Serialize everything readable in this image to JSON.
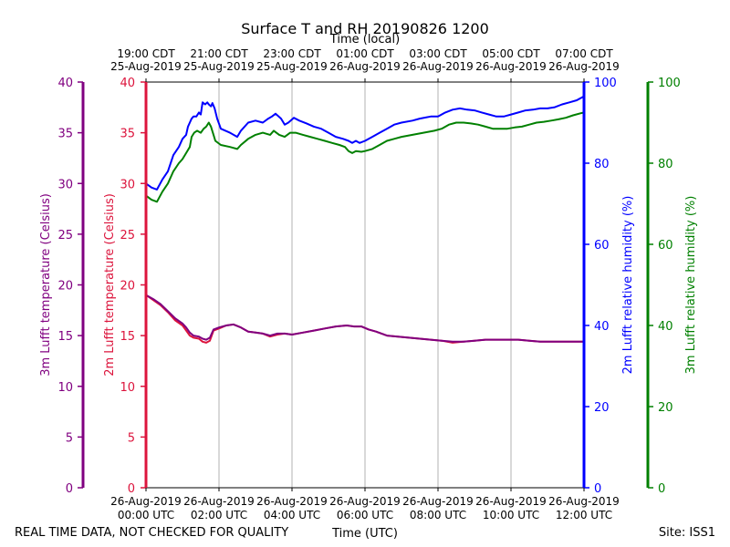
{
  "chart_data": {
    "type": "line",
    "title": "Surface T and RH 20190826 1200",
    "top_axis_title": "Time (local)",
    "bottom_axis_title": "Time (UTC)",
    "footer_left": "REAL TIME DATA, NOT CHECKED FOR QUALITY",
    "footer_right": "Site: ISS1",
    "x_range_hours": [
      0,
      12
    ],
    "top_ticks": [
      {
        "h": 0,
        "l1": "19:00 CDT",
        "l2": "25-Aug-2019"
      },
      {
        "h": 2,
        "l1": "21:00 CDT",
        "l2": "25-Aug-2019"
      },
      {
        "h": 4,
        "l1": "23:00 CDT",
        "l2": "25-Aug-2019"
      },
      {
        "h": 6,
        "l1": "01:00 CDT",
        "l2": "26-Aug-2019"
      },
      {
        "h": 8,
        "l1": "03:00 CDT",
        "l2": "26-Aug-2019"
      },
      {
        "h": 10,
        "l1": "05:00 CDT",
        "l2": "26-Aug-2019"
      },
      {
        "h": 12,
        "l1": "07:00 CDT",
        "l2": "26-Aug-2019"
      }
    ],
    "bottom_ticks": [
      {
        "h": 0,
        "l1": "26-Aug-2019",
        "l2": "00:00 UTC"
      },
      {
        "h": 2,
        "l1": "26-Aug-2019",
        "l2": "02:00 UTC"
      },
      {
        "h": 4,
        "l1": "26-Aug-2019",
        "l2": "04:00 UTC"
      },
      {
        "h": 6,
        "l1": "26-Aug-2019",
        "l2": "06:00 UTC"
      },
      {
        "h": 8,
        "l1": "26-Aug-2019",
        "l2": "08:00 UTC"
      },
      {
        "h": 10,
        "l1": "26-Aug-2019",
        "l2": "10:00 UTC"
      },
      {
        "h": 12,
        "l1": "26-Aug-2019",
        "l2": "12:00 UTC"
      }
    ],
    "axes": {
      "temp3m": {
        "label": "3m Lufft temperature (Celsius)",
        "color": "#800080",
        "min": 0,
        "max": 40,
        "ticks": [
          0,
          5,
          10,
          15,
          20,
          25,
          30,
          35,
          40
        ]
      },
      "temp2m": {
        "label": "2m Lufft temperature (Celsius)",
        "color": "#dc143c",
        "min": 0,
        "max": 40,
        "ticks": [
          0,
          5,
          10,
          15,
          20,
          25,
          30,
          35,
          40
        ]
      },
      "rh2m": {
        "label": "2m Lufft relative humidity (%)",
        "color": "#0000ff",
        "min": 0,
        "max": 100,
        "ticks": [
          0,
          20,
          40,
          60,
          80,
          100
        ]
      },
      "rh3m": {
        "label": "3m Lufft relative humidity (%)",
        "color": "#008000",
        "min": 0,
        "max": 100,
        "ticks": [
          0,
          20,
          40,
          60,
          80,
          100
        ]
      }
    },
    "series": [
      {
        "name": "2m Lufft relative humidity",
        "axis": "rh2m",
        "color": "#0000ff",
        "points": [
          [
            0,
            75
          ],
          [
            0.15,
            74
          ],
          [
            0.3,
            73.5
          ],
          [
            0.45,
            76
          ],
          [
            0.6,
            78
          ],
          [
            0.75,
            82
          ],
          [
            0.9,
            84
          ],
          [
            1.0,
            86
          ],
          [
            1.1,
            87
          ],
          [
            1.15,
            89
          ],
          [
            1.2,
            90
          ],
          [
            1.25,
            91
          ],
          [
            1.3,
            91.5
          ],
          [
            1.38,
            91.5
          ],
          [
            1.45,
            92.5
          ],
          [
            1.5,
            92
          ],
          [
            1.55,
            95
          ],
          [
            1.62,
            94.5
          ],
          [
            1.68,
            95
          ],
          [
            1.72,
            94.5
          ],
          [
            1.78,
            94
          ],
          [
            1.82,
            94.8
          ],
          [
            1.88,
            93.5
          ],
          [
            1.95,
            91
          ],
          [
            2.05,
            88.5
          ],
          [
            2.3,
            87.5
          ],
          [
            2.5,
            86.5
          ],
          [
            2.6,
            88
          ],
          [
            2.8,
            90
          ],
          [
            3.0,
            90.5
          ],
          [
            3.2,
            90
          ],
          [
            3.35,
            91
          ],
          [
            3.45,
            91.5
          ],
          [
            3.55,
            92.2
          ],
          [
            3.7,
            91
          ],
          [
            3.8,
            89.5
          ],
          [
            3.9,
            90
          ],
          [
            4.05,
            91.2
          ],
          [
            4.2,
            90.5
          ],
          [
            4.4,
            89.8
          ],
          [
            4.6,
            89
          ],
          [
            4.8,
            88.5
          ],
          [
            5.0,
            87.5
          ],
          [
            5.2,
            86.5
          ],
          [
            5.4,
            86
          ],
          [
            5.55,
            85.5
          ],
          [
            5.65,
            85
          ],
          [
            5.75,
            85.5
          ],
          [
            5.85,
            85
          ],
          [
            6.0,
            85.5
          ],
          [
            6.2,
            86.5
          ],
          [
            6.4,
            87.5
          ],
          [
            6.6,
            88.5
          ],
          [
            6.8,
            89.5
          ],
          [
            7.0,
            90
          ],
          [
            7.3,
            90.5
          ],
          [
            7.5,
            91
          ],
          [
            7.8,
            91.5
          ],
          [
            8.0,
            91.5
          ],
          [
            8.2,
            92.5
          ],
          [
            8.4,
            93.2
          ],
          [
            8.6,
            93.5
          ],
          [
            8.8,
            93.2
          ],
          [
            9.0,
            93
          ],
          [
            9.2,
            92.5
          ],
          [
            9.4,
            92
          ],
          [
            9.6,
            91.5
          ],
          [
            9.8,
            91.5
          ],
          [
            10.0,
            92
          ],
          [
            10.2,
            92.5
          ],
          [
            10.4,
            93
          ],
          [
            10.6,
            93.2
          ],
          [
            10.8,
            93.5
          ],
          [
            11.0,
            93.5
          ],
          [
            11.2,
            93.8
          ],
          [
            11.4,
            94.5
          ],
          [
            11.6,
            95
          ],
          [
            11.8,
            95.5
          ],
          [
            12.0,
            96.5
          ]
        ]
      },
      {
        "name": "3m Lufft relative humidity",
        "axis": "rh3m",
        "color": "#008000",
        "points": [
          [
            0,
            72
          ],
          [
            0.15,
            71
          ],
          [
            0.3,
            70.5
          ],
          [
            0.45,
            73
          ],
          [
            0.6,
            75
          ],
          [
            0.75,
            78
          ],
          [
            0.9,
            80
          ],
          [
            1.0,
            81
          ],
          [
            1.1,
            82.5
          ],
          [
            1.2,
            84
          ],
          [
            1.25,
            86.5
          ],
          [
            1.32,
            87.5
          ],
          [
            1.4,
            88
          ],
          [
            1.5,
            87.5
          ],
          [
            1.58,
            88.5
          ],
          [
            1.65,
            89
          ],
          [
            1.72,
            90
          ],
          [
            1.78,
            89
          ],
          [
            1.85,
            87
          ],
          [
            1.9,
            85.5
          ],
          [
            2.05,
            84.5
          ],
          [
            2.3,
            84
          ],
          [
            2.5,
            83.5
          ],
          [
            2.6,
            84.5
          ],
          [
            2.8,
            86
          ],
          [
            3.0,
            87
          ],
          [
            3.2,
            87.5
          ],
          [
            3.4,
            87
          ],
          [
            3.5,
            88
          ],
          [
            3.65,
            87
          ],
          [
            3.8,
            86.5
          ],
          [
            3.95,
            87.5
          ],
          [
            4.1,
            87.5
          ],
          [
            4.3,
            87
          ],
          [
            4.5,
            86.5
          ],
          [
            4.7,
            86
          ],
          [
            4.9,
            85.5
          ],
          [
            5.1,
            85
          ],
          [
            5.3,
            84.5
          ],
          [
            5.45,
            84
          ],
          [
            5.55,
            83
          ],
          [
            5.65,
            82.5
          ],
          [
            5.75,
            83
          ],
          [
            5.9,
            82.8
          ],
          [
            6.0,
            83
          ],
          [
            6.2,
            83.5
          ],
          [
            6.4,
            84.5
          ],
          [
            6.6,
            85.5
          ],
          [
            6.8,
            86
          ],
          [
            7.0,
            86.5
          ],
          [
            7.3,
            87
          ],
          [
            7.6,
            87.5
          ],
          [
            7.9,
            88
          ],
          [
            8.1,
            88.5
          ],
          [
            8.3,
            89.5
          ],
          [
            8.5,
            90
          ],
          [
            8.7,
            90
          ],
          [
            8.9,
            89.8
          ],
          [
            9.1,
            89.5
          ],
          [
            9.3,
            89
          ],
          [
            9.5,
            88.5
          ],
          [
            9.7,
            88.5
          ],
          [
            9.9,
            88.5
          ],
          [
            10.1,
            88.8
          ],
          [
            10.3,
            89
          ],
          [
            10.5,
            89.5
          ],
          [
            10.7,
            90
          ],
          [
            10.9,
            90.2
          ],
          [
            11.1,
            90.5
          ],
          [
            11.3,
            90.8
          ],
          [
            11.5,
            91.2
          ],
          [
            11.7,
            91.8
          ],
          [
            11.9,
            92.3
          ],
          [
            12.0,
            92.5
          ]
        ]
      },
      {
        "name": "2m Lufft temperature",
        "axis": "temp2m",
        "color": "#dc143c",
        "points": [
          [
            0,
            19
          ],
          [
            0.2,
            18.5
          ],
          [
            0.4,
            18
          ],
          [
            0.6,
            17.3
          ],
          [
            0.8,
            16.5
          ],
          [
            1.0,
            16
          ],
          [
            1.1,
            15.5
          ],
          [
            1.2,
            15
          ],
          [
            1.3,
            14.8
          ],
          [
            1.45,
            14.7
          ],
          [
            1.55,
            14.4
          ],
          [
            1.65,
            14.3
          ],
          [
            1.75,
            14.5
          ],
          [
            1.85,
            15.5
          ],
          [
            2.0,
            15.7
          ],
          [
            2.2,
            16
          ],
          [
            2.4,
            16.1
          ],
          [
            2.6,
            15.8
          ],
          [
            2.8,
            15.4
          ],
          [
            3.0,
            15.3
          ],
          [
            3.2,
            15.2
          ],
          [
            3.4,
            14.9
          ],
          [
            3.6,
            15.1
          ],
          [
            3.8,
            15.2
          ],
          [
            4.0,
            15.1
          ],
          [
            4.3,
            15.3
          ],
          [
            4.6,
            15.5
          ],
          [
            4.9,
            15.7
          ],
          [
            5.2,
            15.9
          ],
          [
            5.5,
            16.0
          ],
          [
            5.7,
            15.9
          ],
          [
            5.9,
            15.9
          ],
          [
            6.1,
            15.6
          ],
          [
            6.3,
            15.4
          ],
          [
            6.6,
            15.0
          ],
          [
            6.9,
            14.9
          ],
          [
            7.2,
            14.8
          ],
          [
            7.5,
            14.7
          ],
          [
            7.8,
            14.6
          ],
          [
            8.1,
            14.5
          ],
          [
            8.4,
            14.3
          ],
          [
            8.7,
            14.4
          ],
          [
            9.0,
            14.5
          ],
          [
            9.3,
            14.6
          ],
          [
            9.6,
            14.6
          ],
          [
            9.9,
            14.6
          ],
          [
            10.2,
            14.6
          ],
          [
            10.5,
            14.5
          ],
          [
            10.8,
            14.4
          ],
          [
            11.1,
            14.4
          ],
          [
            11.4,
            14.4
          ],
          [
            11.7,
            14.4
          ],
          [
            12.0,
            14.4
          ]
        ]
      },
      {
        "name": "3m Lufft temperature",
        "axis": "temp3m",
        "color": "#800080",
        "points": [
          [
            0,
            19
          ],
          [
            0.2,
            18.6
          ],
          [
            0.4,
            18.1
          ],
          [
            0.6,
            17.4
          ],
          [
            0.8,
            16.7
          ],
          [
            1.0,
            16.2
          ],
          [
            1.1,
            15.8
          ],
          [
            1.2,
            15.3
          ],
          [
            1.3,
            15.0
          ],
          [
            1.45,
            14.9
          ],
          [
            1.55,
            14.7
          ],
          [
            1.65,
            14.6
          ],
          [
            1.75,
            14.8
          ],
          [
            1.85,
            15.6
          ],
          [
            2.0,
            15.8
          ],
          [
            2.2,
            16
          ],
          [
            2.4,
            16.1
          ],
          [
            2.6,
            15.8
          ],
          [
            2.8,
            15.4
          ],
          [
            3.0,
            15.3
          ],
          [
            3.2,
            15.2
          ],
          [
            3.4,
            15.0
          ],
          [
            3.6,
            15.2
          ],
          [
            3.8,
            15.2
          ],
          [
            4.0,
            15.1
          ],
          [
            4.3,
            15.3
          ],
          [
            4.6,
            15.5
          ],
          [
            4.9,
            15.7
          ],
          [
            5.2,
            15.9
          ],
          [
            5.5,
            16.0
          ],
          [
            5.7,
            15.9
          ],
          [
            5.9,
            15.9
          ],
          [
            6.1,
            15.6
          ],
          [
            6.3,
            15.4
          ],
          [
            6.6,
            15.0
          ],
          [
            6.9,
            14.9
          ],
          [
            7.2,
            14.8
          ],
          [
            7.5,
            14.7
          ],
          [
            7.8,
            14.6
          ],
          [
            8.1,
            14.5
          ],
          [
            8.4,
            14.4
          ],
          [
            8.7,
            14.4
          ],
          [
            9.0,
            14.5
          ],
          [
            9.3,
            14.6
          ],
          [
            9.6,
            14.6
          ],
          [
            9.9,
            14.6
          ],
          [
            10.2,
            14.6
          ],
          [
            10.5,
            14.5
          ],
          [
            10.8,
            14.4
          ],
          [
            11.1,
            14.4
          ],
          [
            11.4,
            14.4
          ],
          [
            11.7,
            14.4
          ],
          [
            12.0,
            14.4
          ]
        ]
      }
    ]
  }
}
